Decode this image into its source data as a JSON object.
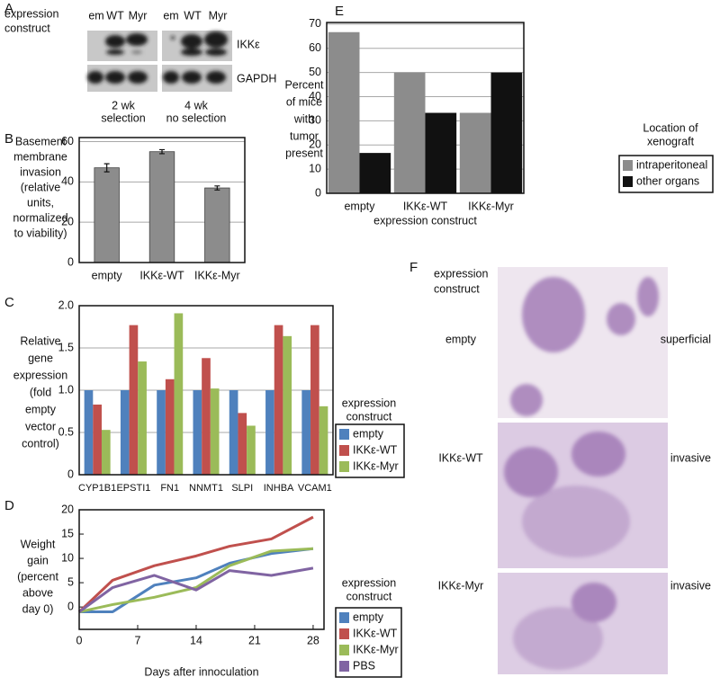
{
  "panels": {
    "labels": [
      "A",
      "B",
      "C",
      "D",
      "E",
      "F"
    ]
  },
  "blot": {
    "row_label": [
      "expression",
      "construct"
    ],
    "lanes": [
      "em",
      "WT",
      "Myr",
      "em",
      "WT",
      "Myr"
    ],
    "bands": [
      "IKKε",
      "GAPDH"
    ],
    "conditions": [
      [
        "2 wk",
        "selection"
      ],
      [
        "4 wk",
        "no selection"
      ]
    ]
  },
  "histology": {
    "column_label": [
      "expression",
      "construct"
    ],
    "rows": [
      {
        "construct": "empty",
        "phenotype": "superficial"
      },
      {
        "construct": "IKKε-WT",
        "phenotype": "invasive"
      },
      {
        "construct": "IKKε-Myr",
        "phenotype": "invasive"
      }
    ]
  },
  "chart_data": [
    {
      "type": "bar",
      "ylabel": [
        "Basement",
        "membrane",
        "invasion",
        "(relative",
        "units,",
        "normalized",
        "to viability)"
      ],
      "categories": [
        "empty",
        "IKKε-WT",
        "IKKε-Myr"
      ],
      "values": [
        47,
        55,
        37
      ],
      "errors": [
        2,
        1,
        1
      ],
      "color": "#8c8c8c",
      "ylim": [
        0,
        62
      ],
      "yticks": [
        0,
        20,
        40,
        60
      ],
      "grid": true
    },
    {
      "type": "bar",
      "ylabel": [
        "Relative",
        "gene",
        "expression",
        "(fold",
        "empty",
        "vector",
        "control)"
      ],
      "categories": [
        "CYP1B1",
        "EPSTI1",
        "FN1",
        "NNMT1",
        "SLPI",
        "INHBA",
        "VCAM1"
      ],
      "series": [
        {
          "name": "empty",
          "color": "#4f81bd",
          "values": [
            1.0,
            1.0,
            1.0,
            1.0,
            1.0,
            1.0,
            1.0
          ]
        },
        {
          "name": "IKKε-WT",
          "color": "#c0504d",
          "values": [
            0.83,
            1.77,
            1.13,
            1.38,
            0.73,
            1.77,
            1.77
          ]
        },
        {
          "name": "IKKε-Myr",
          "color": "#9bbb59",
          "values": [
            0.53,
            1.34,
            1.91,
            1.02,
            0.58,
            1.64,
            0.81
          ]
        }
      ],
      "legend_title": [
        "expression",
        "construct"
      ],
      "ylim": [
        0,
        2.0
      ],
      "yticks": [
        0,
        0.5,
        {
          "value": 1.0,
          "label": "1.0"
        },
        1.5,
        {
          "value": 2.0,
          "label": "2.0"
        }
      ],
      "grid": true
    },
    {
      "type": "line",
      "ylabel": [
        "Weight",
        "gain",
        "(percent",
        "above",
        "day 0)"
      ],
      "xlabel": "Days after innoculation",
      "x": [
        0,
        4,
        9,
        14,
        18,
        23,
        28
      ],
      "series": [
        {
          "name": "empty",
          "color": "#4f81bd",
          "values": [
            -1,
            -1,
            4.5,
            6,
            9,
            11,
            12
          ]
        },
        {
          "name": "IKKε-WT",
          "color": "#c0504d",
          "values": [
            -1,
            5.5,
            8.5,
            10.5,
            12.5,
            14,
            18.5
          ]
        },
        {
          "name": "IKKε-Myr",
          "color": "#9bbb59",
          "values": [
            -1,
            0.5,
            2,
            4,
            8.5,
            11.5,
            12
          ]
        },
        {
          "name": "PBS",
          "color": "#8064a2",
          "values": [
            -1,
            4,
            6.5,
            3.5,
            7.5,
            6.5,
            8
          ]
        }
      ],
      "legend_title": [
        "expression",
        "construct"
      ],
      "xlim": [
        0,
        29.3
      ],
      "xticks": [
        0,
        7,
        14,
        21,
        28
      ],
      "ylim": [
        -4.6,
        20
      ],
      "yticks": [
        0,
        5,
        10,
        15,
        20
      ],
      "grid": false
    },
    {
      "type": "bar",
      "ylabel": [
        "Percent",
        "of mice",
        "with",
        "tumor",
        "present"
      ],
      "xlabel": "expression construct",
      "categories": [
        "empty",
        "IKKε-WT",
        "IKKε-Myr"
      ],
      "series": [
        {
          "name": "intraperitoneal",
          "color": "#8c8c8c",
          "values": [
            66.7,
            50,
            33.3
          ]
        },
        {
          "name": "other organs",
          "color": "#111111",
          "values": [
            16.7,
            33.3,
            50
          ]
        }
      ],
      "legend_title": [
        "Location of",
        "xenograft"
      ],
      "ylim": [
        0,
        70.7
      ],
      "yticks": [
        0,
        10,
        20,
        30,
        40,
        50,
        60,
        70
      ],
      "grid": true
    }
  ]
}
